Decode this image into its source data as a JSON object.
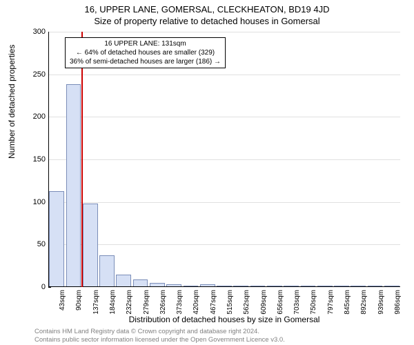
{
  "title_main": "16, UPPER LANE, GOMERSAL, CLECKHEATON, BD19 4JD",
  "title_sub": "Size of property relative to detached houses in Gomersal",
  "y_label": "Number of detached properties",
  "x_label": "Distribution of detached houses by size in Gomersal",
  "chart": {
    "type": "histogram",
    "ylim": [
      0,
      300
    ],
    "ytick_step": 50,
    "bar_fill": "#d6e0f5",
    "bar_stroke": "#7a8db8",
    "grid_color": "#e0e0e0",
    "ref_line_color": "#cc0000",
    "ref_line_x_index": 2,
    "x_categories": [
      "43sqm",
      "90sqm",
      "137sqm",
      "184sqm",
      "232sqm",
      "279sqm",
      "326sqm",
      "373sqm",
      "420sqm",
      "467sqm",
      "515sqm",
      "562sqm",
      "609sqm",
      "656sqm",
      "703sqm",
      "750sqm",
      "797sqm",
      "845sqm",
      "892sqm",
      "939sqm",
      "986sqm"
    ],
    "values": [
      113,
      238,
      98,
      37,
      15,
      9,
      5,
      3,
      2,
      3,
      2,
      1,
      1,
      1,
      1,
      1,
      0,
      0,
      0,
      0,
      0
    ]
  },
  "info_box": {
    "line1": "16 UPPER LANE: 131sqm",
    "line2": "← 64% of detached houses are smaller (329)",
    "line3": "36% of semi-detached houses are larger (186) →"
  },
  "footer": {
    "line1": "Contains HM Land Registry data © Crown copyright and database right 2024.",
    "line2": "Contains public sector information licensed under the Open Government Licence v3.0."
  }
}
